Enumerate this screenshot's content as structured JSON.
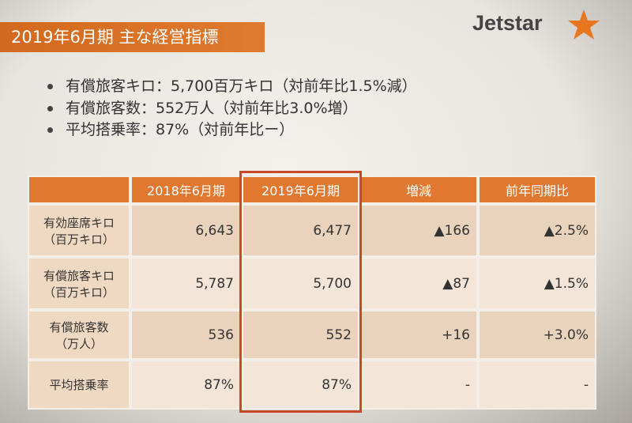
{
  "header": {
    "title": "2019年6月期 主な経営指標",
    "logo": "Jetstar"
  },
  "bullets": [
    "有償旅客キロ：5,700百万キロ（対前年比1.5%減）",
    "有償旅客数：552万人（対前年比3.0%増）",
    "平均搭乗率：87%（対前年比ー）"
  ],
  "table": {
    "columns": [
      "2018年6月期",
      "2019年6月期",
      "増減",
      "前年同期比"
    ],
    "rows": [
      {
        "label": [
          "有効座席キロ",
          "（百万キロ）"
        ],
        "cells": [
          "6,643",
          "6,477",
          "▲166",
          "▲2.5%"
        ]
      },
      {
        "label": [
          "有償旅客キロ",
          "（百万キロ）"
        ],
        "cells": [
          "5,787",
          "5,700",
          "▲87",
          "▲1.5%"
        ]
      },
      {
        "label": [
          "有償旅客数",
          "（万人）"
        ],
        "cells": [
          "536",
          "552",
          "+16",
          "+3.0%"
        ]
      },
      {
        "label": [
          "平均搭乗率"
        ],
        "cells": [
          "87%",
          "87%",
          "-",
          "-"
        ]
      }
    ]
  }
}
